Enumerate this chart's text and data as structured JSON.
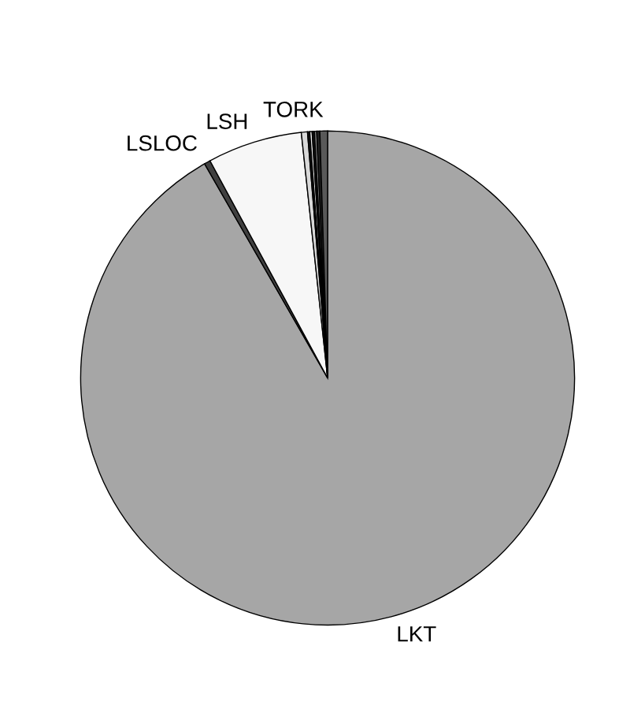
{
  "chart_data": {
    "type": "pie",
    "categories": [
      "LKT",
      "LSLOC",
      "LSH",
      null,
      null,
      null,
      null,
      null,
      null,
      "TORK"
    ],
    "values": [
      91.7,
      0.4,
      6.2,
      0.4,
      0.15,
      0.15,
      0.15,
      0.15,
      0.2,
      0.5
    ],
    "colors": [
      "#a6a6a6",
      "#404040",
      "#f7f7f7",
      "#d9d9d9",
      "#111111",
      "#f0f0f0",
      "#111111",
      "#808080",
      "#222222",
      "#595959"
    ]
  }
}
